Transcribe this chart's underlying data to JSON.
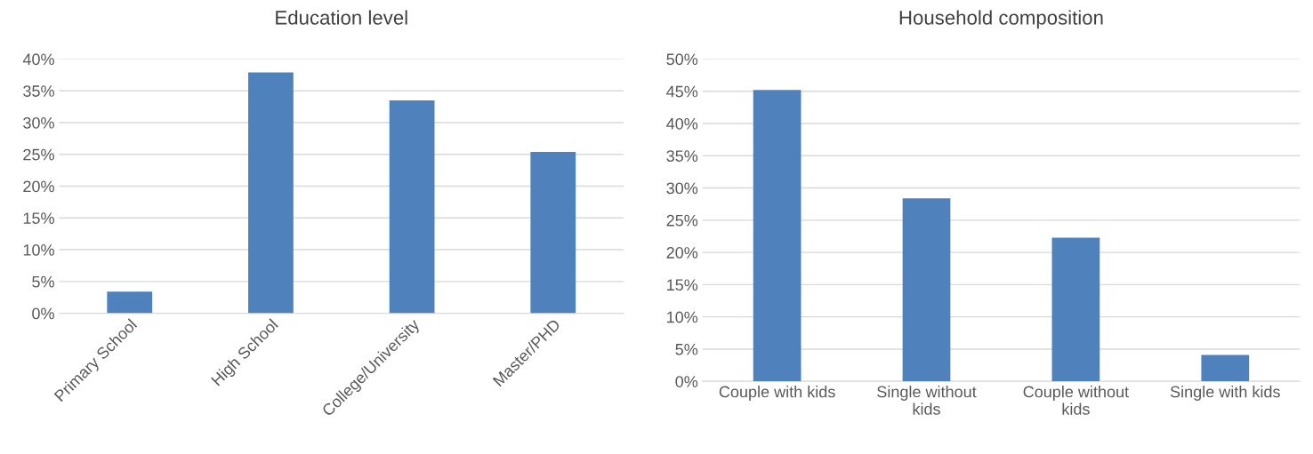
{
  "chart_data": [
    {
      "type": "bar",
      "title": "Education level",
      "categories": [
        "Primary School",
        "High School",
        "College/University",
        "Master/PHD"
      ],
      "values": [
        3.4,
        37.9,
        33.5,
        25.4
      ],
      "color": "#4f81bd",
      "ylim": [
        0,
        40
      ],
      "yticks": [
        {
          "value": 0,
          "label": "0%"
        },
        {
          "value": 5,
          "label": "5%"
        },
        {
          "value": 10,
          "label": "10%"
        },
        {
          "value": 15,
          "label": "15%"
        },
        {
          "value": 20,
          "label": "20%"
        },
        {
          "value": 25,
          "label": "25%"
        },
        {
          "value": 30,
          "label": "30%"
        },
        {
          "value": 35,
          "label": "35%"
        },
        {
          "value": 40,
          "label": "40%"
        }
      ],
      "grid": "y"
    },
    {
      "type": "bar",
      "title": "Household composition",
      "categories": [
        "Couple with kids",
        "Single without kids",
        "Couple without kids",
        "Single with kids"
      ],
      "values": [
        45.2,
        28.4,
        22.3,
        4.1
      ],
      "color": "#4f81bd",
      "ylim": [
        0,
        50
      ],
      "yticks": [
        {
          "value": 0,
          "label": "0%"
        },
        {
          "value": 5,
          "label": "5%"
        },
        {
          "value": 10,
          "label": "10%"
        },
        {
          "value": 15,
          "label": "15%"
        },
        {
          "value": 20,
          "label": "20%"
        },
        {
          "value": 25,
          "label": "25%"
        },
        {
          "value": 30,
          "label": "30%"
        },
        {
          "value": 35,
          "label": "35%"
        },
        {
          "value": 40,
          "label": "40%"
        },
        {
          "value": 45,
          "label": "45%"
        },
        {
          "value": 50,
          "label": "50%"
        }
      ],
      "grid": "y"
    }
  ]
}
